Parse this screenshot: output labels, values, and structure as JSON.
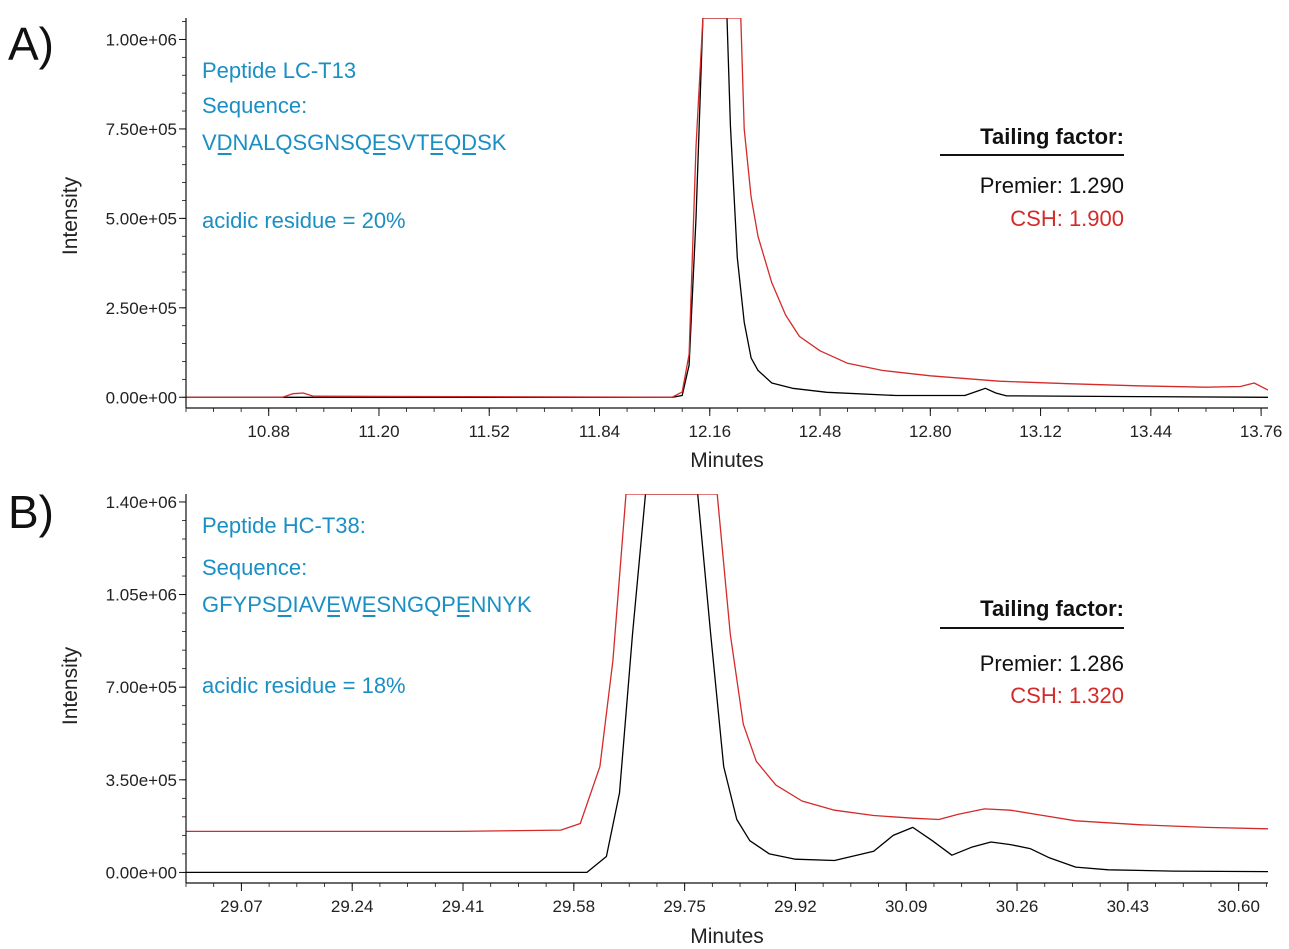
{
  "chart_data": [
    {
      "type": "line",
      "panel_label": "A)",
      "xlabel": "Minutes",
      "ylabel": "Intensity",
      "xlim": [
        10.64,
        13.78
      ],
      "ylim": [
        -30000,
        1060000
      ],
      "x_ticks": [
        "10.88",
        "11.20",
        "11.52",
        "11.84",
        "12.16",
        "12.48",
        "12.80",
        "13.12",
        "13.44",
        "13.76"
      ],
      "x_tick_values": [
        10.88,
        11.2,
        11.52,
        11.84,
        12.16,
        12.48,
        12.8,
        13.12,
        13.44,
        13.76
      ],
      "y_ticks": [
        "0.00e+00",
        "2.50e+05",
        "5.00e+05",
        "7.50e+05",
        "1.00e+06"
      ],
      "y_tick_values": [
        0,
        250000,
        500000,
        750000,
        1000000
      ],
      "annotations": {
        "peptide": "Peptide LC-T13",
        "sequence_label": "Sequence:",
        "sequence": "VDNALQSGNSQESVTEQDSK",
        "underlined_positions": [
          1,
          11,
          15,
          17
        ],
        "acidic": "acidic residue = 20%"
      },
      "tailing_factor": {
        "title": "Tailing factor:",
        "premier": "Premier: 1.290",
        "csh": "CSH: 1.900"
      },
      "series": [
        {
          "color": "#000000",
          "x": [
            10.64,
            12.05,
            12.08,
            12.1,
            12.12,
            12.14,
            12.15,
            12.16,
            12.18,
            12.2,
            12.21,
            12.22,
            12.24,
            12.26,
            12.28,
            12.3,
            12.34,
            12.4,
            12.5,
            12.7,
            12.9,
            12.94,
            12.96,
            12.99,
            13.02,
            13.4,
            13.78
          ],
          "y": [
            0,
            0,
            5000,
            90000,
            500000,
            1060000,
            1060000,
            1060000,
            1060000,
            1060000,
            1060000,
            760000,
            390000,
            210000,
            110000,
            75000,
            40000,
            25000,
            14000,
            5000,
            5000,
            18000,
            25000,
            12000,
            4000,
            2000,
            0
          ]
        },
        {
          "color": "#d42a2a",
          "x": [
            10.64,
            10.92,
            10.95,
            10.98,
            11.01,
            12.05,
            12.08,
            12.1,
            12.12,
            12.14,
            12.16,
            12.18,
            12.2,
            12.22,
            12.24,
            12.25,
            12.26,
            12.28,
            12.3,
            12.34,
            12.38,
            12.42,
            12.48,
            12.56,
            12.66,
            12.8,
            13.0,
            13.2,
            13.4,
            13.6,
            13.7,
            13.74,
            13.78
          ],
          "y": [
            0,
            0,
            10000,
            12000,
            3000,
            0,
            15000,
            120000,
            700000,
            1060000,
            1060000,
            1060000,
            1060000,
            1060000,
            1060000,
            1060000,
            750000,
            560000,
            450000,
            320000,
            230000,
            170000,
            130000,
            95000,
            75000,
            60000,
            45000,
            38000,
            32000,
            28000,
            30000,
            40000,
            20000
          ]
        }
      ]
    },
    {
      "type": "line",
      "panel_label": "B)",
      "xlabel": "Minutes",
      "ylabel": "Intensity",
      "xlim": [
        28.985,
        30.645
      ],
      "ylim": [
        -40000,
        1430000
      ],
      "x_ticks": [
        "29.07",
        "29.24",
        "29.41",
        "29.58",
        "29.75",
        "29.92",
        "30.09",
        "30.26",
        "30.43",
        "30.60"
      ],
      "x_tick_values": [
        29.07,
        29.24,
        29.41,
        29.58,
        29.75,
        29.92,
        30.09,
        30.26,
        30.43,
        30.6
      ],
      "y_ticks": [
        "0.00e+00",
        "3.50e+05",
        "7.00e+05",
        "1.05e+06",
        "1.40e+06"
      ],
      "y_tick_values": [
        0,
        350000,
        700000,
        1050000,
        1400000
      ],
      "annotations": {
        "peptide": "Peptide HC-T38:",
        "sequence_label": "Sequence:",
        "sequence": "GFYPSDIAVEWESNGQPENNYK",
        "underlined_positions": [
          5,
          9,
          11,
          17
        ],
        "acidic": "acidic residue = 18%"
      },
      "tailing_factor": {
        "title": "Tailing factor:",
        "premier": "Premier: 1.286",
        "csh": "CSH: 1.320"
      },
      "series": [
        {
          "color": "#000000",
          "x": [
            28.985,
            29.6,
            29.63,
            29.65,
            29.67,
            29.69,
            29.72,
            29.75,
            29.77,
            29.79,
            29.81,
            29.83,
            29.85,
            29.88,
            29.92,
            29.98,
            30.04,
            30.07,
            30.1,
            30.13,
            30.16,
            30.19,
            30.22,
            30.25,
            30.28,
            30.31,
            30.35,
            30.4,
            30.5,
            30.645
          ],
          "y": [
            0,
            0,
            60000,
            300000,
            900000,
            1430000,
            1430000,
            1430000,
            1430000,
            900000,
            400000,
            200000,
            120000,
            70000,
            50000,
            45000,
            80000,
            140000,
            170000,
            120000,
            65000,
            95000,
            115000,
            105000,
            90000,
            55000,
            20000,
            10000,
            5000,
            3000
          ]
        },
        {
          "color": "#d42a2a",
          "x": [
            28.985,
            29.4,
            29.56,
            29.59,
            29.62,
            29.64,
            29.66,
            29.68,
            29.75,
            29.8,
            29.82,
            29.84,
            29.86,
            29.89,
            29.93,
            29.98,
            30.04,
            30.1,
            30.14,
            30.17,
            30.21,
            30.25,
            30.3,
            30.35,
            30.45,
            30.55,
            30.645
          ],
          "y": [
            155000,
            155000,
            160000,
            185000,
            400000,
            800000,
            1430000,
            1430000,
            1430000,
            1430000,
            900000,
            560000,
            420000,
            330000,
            270000,
            235000,
            215000,
            205000,
            200000,
            220000,
            240000,
            235000,
            215000,
            195000,
            180000,
            170000,
            165000
          ]
        }
      ]
    }
  ]
}
